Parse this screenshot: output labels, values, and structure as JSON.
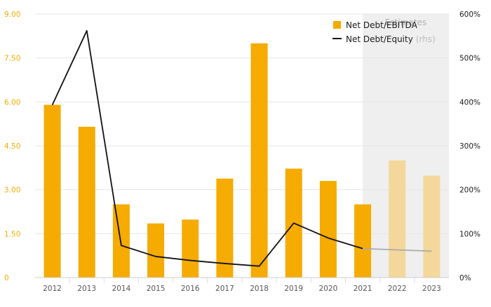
{
  "chart_data": {
    "type": "bar",
    "categories": [
      "2012",
      "2013",
      "2014",
      "2015",
      "2016",
      "2017",
      "2018",
      "2019",
      "2020",
      "2021",
      "2022",
      "2023"
    ],
    "series": [
      {
        "name": "Net Debt/EBITDA",
        "type": "bar",
        "axis": "left",
        "values": [
          5.9,
          5.15,
          2.5,
          1.85,
          1.98,
          3.38,
          8.0,
          3.72,
          3.3,
          2.5,
          4.0,
          3.48
        ]
      },
      {
        "name": "Net Debt/Equity",
        "name_suffix": "(rhs)",
        "type": "line",
        "axis": "right",
        "values": [
          393,
          562,
          73,
          48,
          39,
          32,
          26,
          124,
          90,
          66,
          63,
          60
        ]
      }
    ],
    "estimates": {
      "label": "Estimates",
      "categories": [
        "2022",
        "2023"
      ]
    },
    "y_left": {
      "ticks": [
        "0",
        "1.50",
        "3.00",
        "4.50",
        "6.00",
        "7.50",
        "9.00"
      ],
      "range": [
        0,
        9
      ]
    },
    "y_right": {
      "ticks": [
        "0%",
        "100%",
        "200%",
        "300%",
        "400%",
        "500%",
        "600%"
      ],
      "range": [
        0,
        600
      ]
    },
    "colors": {
      "bar": "#f5ab00",
      "bar_estimate": "#f4d79a",
      "line": "#111111",
      "line_estimate": "#aaaaaa",
      "estimate_band": "#efefef",
      "grid": "#e6e6e6",
      "left_axis_text": "#f5ab00"
    },
    "grid": true,
    "legend_position": "top-right"
  }
}
